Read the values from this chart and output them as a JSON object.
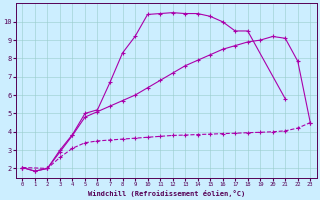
{
  "bg_color": "#cceeff",
  "line_color": "#aa00aa",
  "xlim": [
    -0.5,
    23.5
  ],
  "ylim": [
    1.5,
    11.0
  ],
  "xticks": [
    0,
    1,
    2,
    3,
    4,
    5,
    6,
    7,
    8,
    9,
    10,
    11,
    12,
    13,
    14,
    15,
    16,
    17,
    18,
    19,
    20,
    21,
    22,
    23
  ],
  "yticks": [
    2,
    3,
    4,
    5,
    6,
    7,
    8,
    9,
    10
  ],
  "xlabel": "Windchill (Refroidissement éolien,°C)",
  "line1_x": [
    0,
    1,
    2,
    3,
    4,
    5,
    6,
    7,
    8,
    9,
    10,
    11,
    12,
    13,
    14,
    15,
    16,
    17,
    18,
    21
  ],
  "line1_y": [
    2.05,
    1.85,
    2.0,
    3.0,
    3.85,
    5.0,
    5.2,
    6.7,
    8.3,
    9.2,
    10.4,
    10.45,
    10.5,
    10.45,
    10.45,
    10.3,
    10.0,
    9.5,
    9.5,
    5.8
  ],
  "line2_x": [
    0,
    1,
    2,
    3,
    4,
    5,
    6,
    7,
    8,
    9,
    10,
    11,
    12,
    13,
    14,
    15,
    16,
    17,
    18,
    19,
    20,
    21,
    22,
    23
  ],
  "line2_y": [
    2.05,
    1.85,
    2.0,
    2.9,
    3.8,
    4.8,
    5.1,
    5.4,
    5.7,
    6.0,
    6.4,
    6.8,
    7.2,
    7.6,
    7.9,
    8.2,
    8.5,
    8.7,
    8.9,
    9.0,
    9.2,
    9.1,
    7.85,
    4.5
  ],
  "line3_x": [
    0,
    2,
    3,
    4,
    5,
    6,
    7,
    8,
    9,
    10,
    11,
    12,
    13,
    14,
    15,
    16,
    17,
    18,
    19,
    20,
    21,
    22,
    23
  ],
  "line3_y": [
    2.05,
    2.0,
    2.6,
    3.1,
    3.4,
    3.5,
    3.55,
    3.6,
    3.65,
    3.7,
    3.75,
    3.8,
    3.82,
    3.85,
    3.87,
    3.9,
    3.92,
    3.95,
    3.97,
    4.0,
    4.05,
    4.2,
    4.5
  ]
}
